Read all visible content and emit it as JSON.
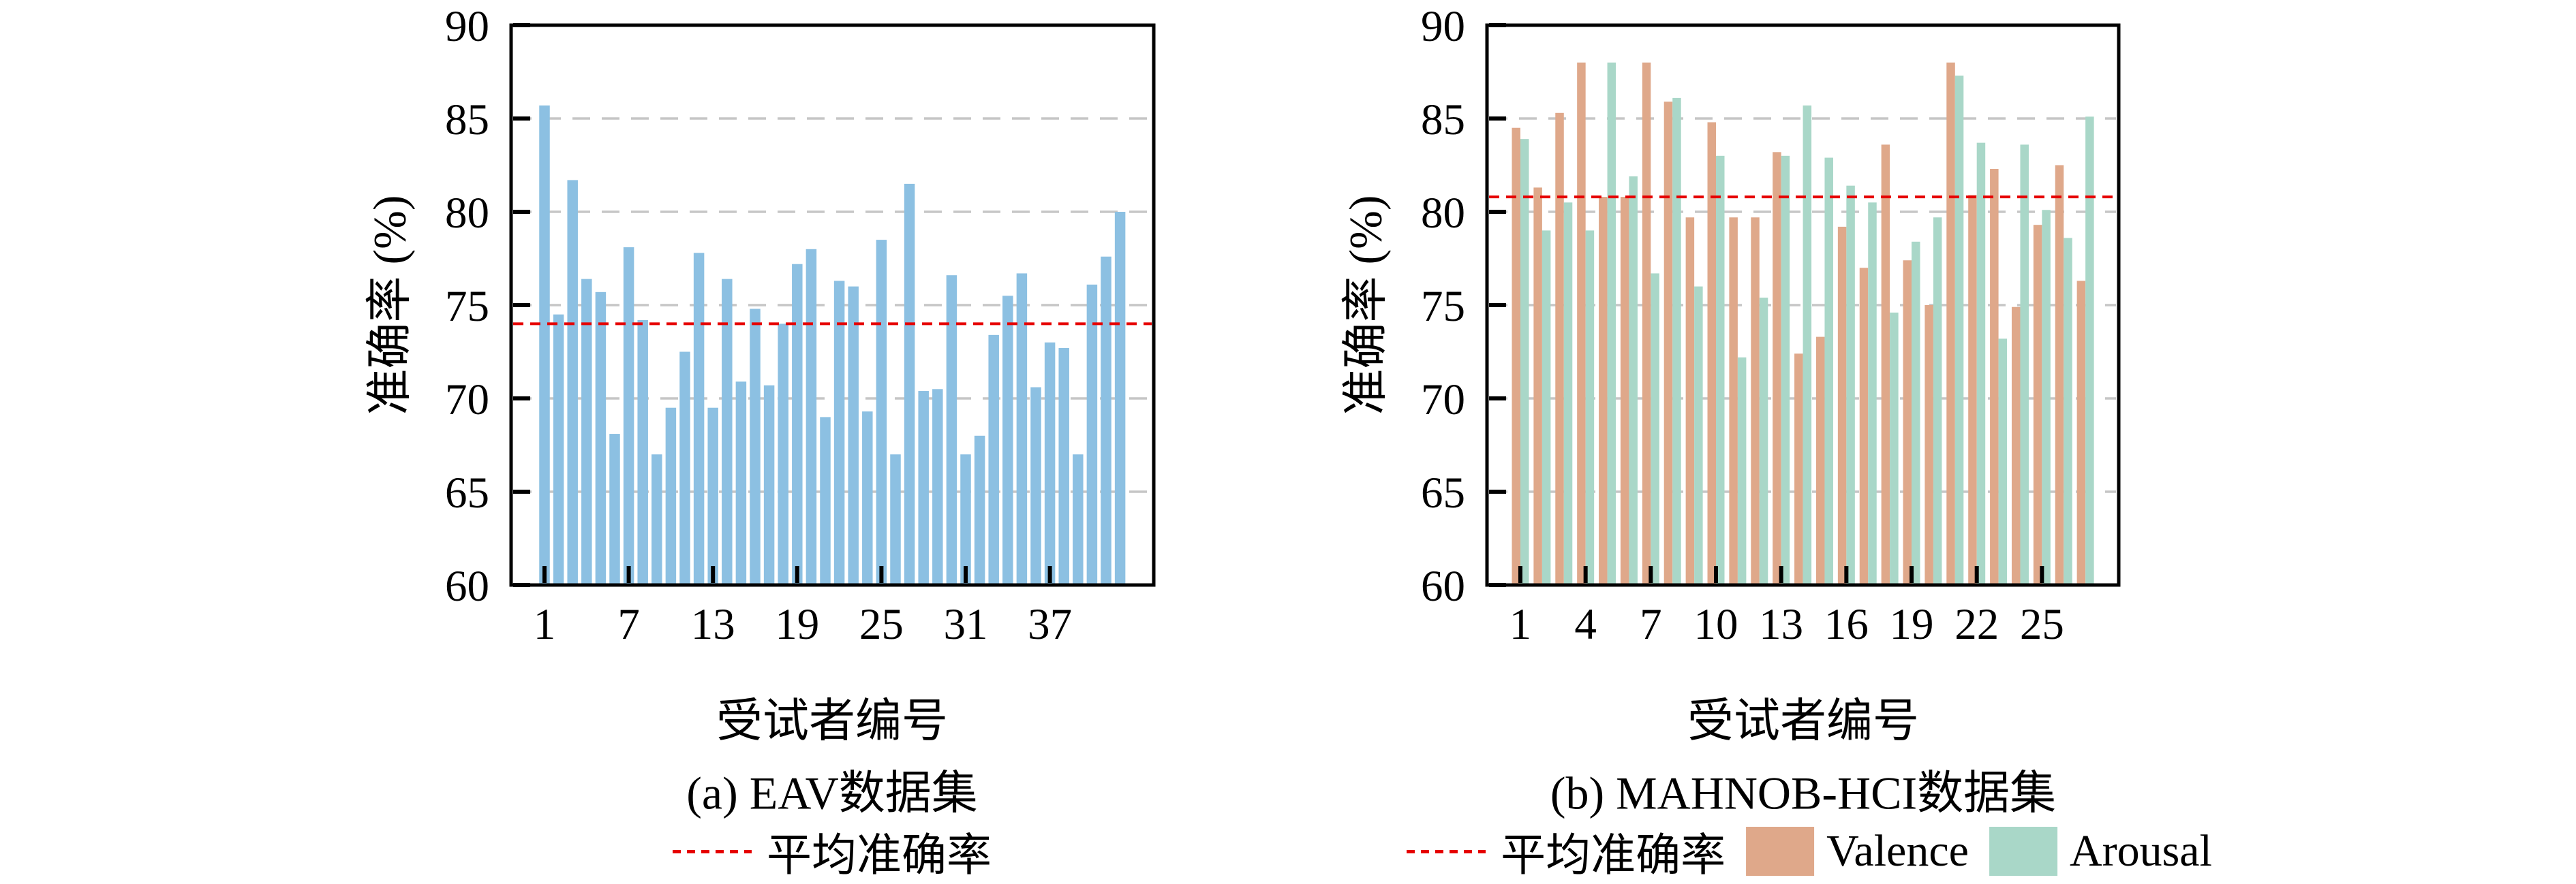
{
  "colors": {
    "bar_blue": "#8cc0e2",
    "valence": "#dfa88a",
    "arousal": "#a9d7c8",
    "avg_line": "#e60000",
    "grid": "#c6c6c6",
    "axis": "#000000"
  },
  "chart_data": [
    {
      "id": "eav",
      "type": "bar",
      "title_caption": "(a) EAV数据集",
      "xlabel": "受试者编号",
      "ylabel": "准确率 (%)",
      "ylim": [
        60,
        90
      ],
      "yticks": [
        60,
        65,
        70,
        75,
        80,
        85,
        90
      ],
      "xticks": [
        1,
        7,
        13,
        19,
        25,
        31,
        37
      ],
      "grid": true,
      "average": 74.0,
      "average_label": "平均准确率",
      "categories": [
        1,
        2,
        3,
        4,
        5,
        6,
        7,
        8,
        9,
        10,
        11,
        12,
        13,
        14,
        15,
        16,
        17,
        18,
        19,
        20,
        21,
        22,
        23,
        24,
        25,
        26,
        27,
        28,
        29,
        30,
        31,
        32,
        33,
        34,
        35,
        36,
        37,
        38,
        39,
        40,
        41,
        42
      ],
      "values": [
        85.7,
        74.5,
        81.7,
        76.4,
        75.7,
        68.1,
        78.1,
        74.2,
        67.0,
        69.5,
        72.5,
        77.8,
        69.5,
        76.4,
        70.9,
        74.8,
        70.7,
        74.0,
        77.2,
        78.0,
        69.0,
        76.3,
        76.0,
        69.3,
        78.5,
        67.0,
        81.5,
        70.4,
        70.5,
        76.6,
        67.0,
        68.0,
        73.4,
        75.5,
        76.7,
        70.6,
        73.0,
        72.7,
        67.0,
        76.1,
        77.6,
        80.0
      ]
    },
    {
      "id": "mahnob-hci",
      "type": "bar",
      "title_caption": "(b) MAHNOB-HCI数据集",
      "xlabel": "受试者编号",
      "ylabel": "准确率 (%)",
      "ylim": [
        60,
        90
      ],
      "yticks": [
        60,
        65,
        70,
        75,
        80,
        85,
        90
      ],
      "xticks": [
        1,
        4,
        7,
        10,
        13,
        16,
        19,
        22,
        25
      ],
      "grid": true,
      "average": 80.8,
      "average_label": "平均准确率",
      "categories": [
        1,
        2,
        3,
        4,
        5,
        6,
        7,
        8,
        9,
        10,
        11,
        12,
        13,
        14,
        15,
        16,
        17,
        18,
        19,
        20,
        21,
        22,
        23,
        24,
        25,
        26,
        27
      ],
      "series": [
        {
          "name": "Valence",
          "values": [
            84.5,
            81.3,
            85.3,
            88.0,
            80.8,
            80.8,
            88.0,
            85.9,
            79.7,
            84.8,
            79.7,
            79.7,
            83.2,
            72.4,
            73.3,
            79.2,
            77.0,
            83.6,
            77.4,
            75.0,
            88.0,
            80.9,
            82.3,
            74.9,
            79.3,
            82.5,
            76.3
          ]
        },
        {
          "name": "Arousal",
          "values": [
            83.9,
            79.0,
            80.5,
            79.0,
            88.0,
            81.9,
            76.7,
            86.1,
            76.0,
            83.0,
            72.2,
            75.4,
            83.0,
            85.7,
            82.9,
            81.4,
            80.5,
            74.6,
            78.4,
            79.7,
            87.3,
            83.7,
            73.2,
            83.6,
            80.1,
            78.6,
            85.1
          ]
        }
      ]
    }
  ],
  "legend_left": {
    "avg_label": "平均准确率"
  },
  "legend_right": {
    "avg_label": "平均准确率",
    "valence_label": "Valence",
    "arousal_label": "Arousal"
  }
}
